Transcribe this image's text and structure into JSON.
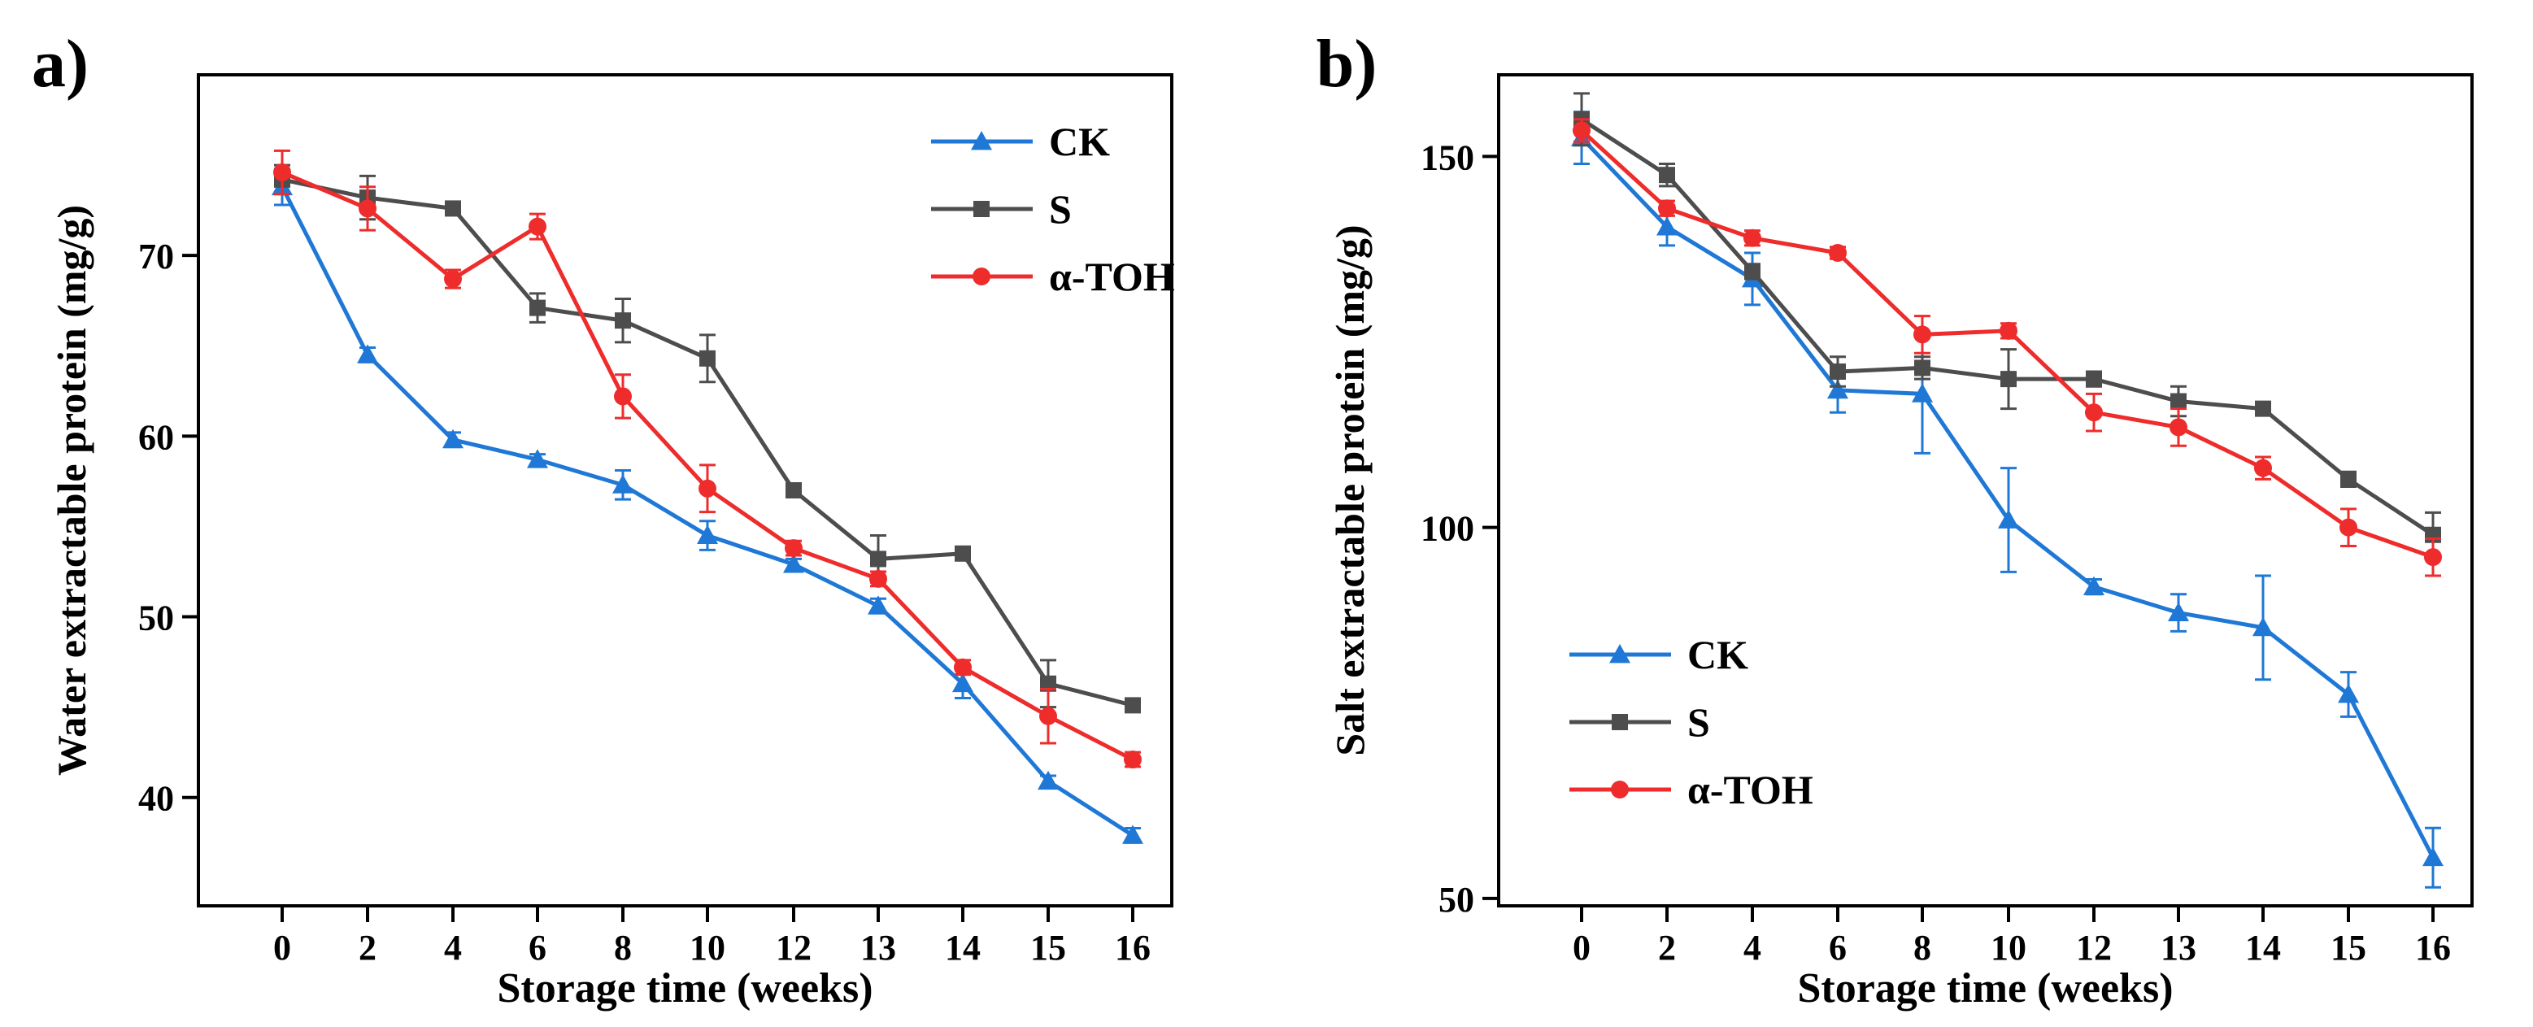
{
  "chart_data": [
    {
      "type": "line",
      "panel_label": "a)",
      "xlabel": "Storage time (weeks)",
      "ylabel": "Water extractable protein (mg/g)",
      "categories": [
        "0",
        "2",
        "4",
        "6",
        "8",
        "10",
        "12",
        "13",
        "14",
        "15",
        "16"
      ],
      "ylim": [
        34,
        80
      ],
      "yticks": [
        "40",
        "50",
        "60",
        "70"
      ],
      "legend_position": "top-right",
      "series": [
        {
          "name": "CK",
          "marker": "triangle",
          "color": "#1f78d6",
          "values": [
            73.8,
            64.5,
            59.8,
            58.7,
            57.3,
            54.5,
            52.9,
            50.6,
            46.3,
            40.9,
            37.9
          ],
          "errors": [
            1.0,
            0.4,
            0.4,
            0.3,
            0.8,
            0.8,
            0.3,
            0.4,
            0.8,
            0.3,
            0.4
          ]
        },
        {
          "name": "S",
          "marker": "square",
          "color": "#4d4d4d",
          "values": [
            74.2,
            73.2,
            72.6,
            67.1,
            66.4,
            64.3,
            57.0,
            53.2,
            53.5,
            46.3,
            45.1
          ],
          "errors": [
            0.8,
            1.2,
            0.3,
            0.8,
            1.2,
            1.3,
            0.3,
            1.3,
            0.3,
            1.3,
            0.3
          ]
        },
        {
          "name": "α-TOH",
          "marker": "circle",
          "color": "#ee2c2c",
          "values": [
            74.6,
            72.6,
            68.7,
            71.6,
            62.2,
            57.1,
            53.8,
            52.1,
            47.2,
            44.5,
            42.1
          ],
          "errors": [
            1.2,
            1.2,
            0.5,
            0.7,
            1.2,
            1.3,
            0.4,
            0.4,
            0.4,
            1.5,
            0.4
          ]
        }
      ]
    },
    {
      "type": "line",
      "panel_label": "b)",
      "xlabel": "Storage time (weeks)",
      "ylabel": "Salt extractable protein (mg/g)",
      "categories": [
        "0",
        "2",
        "4",
        "6",
        "8",
        "10",
        "12",
        "13",
        "14",
        "15",
        "16"
      ],
      "ylim": [
        49,
        161
      ],
      "yticks": [
        "50",
        "100",
        "150"
      ],
      "legend_position": "bottom-left",
      "series": [
        {
          "name": "CK",
          "marker": "triangle",
          "color": "#1f78d6",
          "values": [
            152.5,
            140.5,
            133.5,
            118.5,
            118.0,
            101.0,
            92.0,
            88.5,
            86.5,
            77.5,
            55.5
          ],
          "errors": [
            3.5,
            2.5,
            3.5,
            3.0,
            8.0,
            7.0,
            1.0,
            2.5,
            7.0,
            3.0,
            4.0
          ]
        },
        {
          "name": "S",
          "marker": "square",
          "color": "#4d4d4d",
          "values": [
            155.0,
            147.5,
            134.5,
            121.0,
            121.5,
            120.0,
            120.0,
            117.0,
            116.0,
            106.5,
            99.0
          ],
          "errors": [
            3.5,
            1.5,
            1.0,
            2.0,
            1.5,
            4.0,
            1.0,
            2.0,
            0.8,
            1.0,
            3.0
          ]
        },
        {
          "name": "α-TOH",
          "marker": "circle",
          "color": "#ee2c2c",
          "values": [
            153.5,
            143.0,
            139.0,
            137.0,
            126.0,
            126.5,
            115.5,
            113.5,
            108.0,
            100.0,
            96.0
          ],
          "errors": [
            1.5,
            1.0,
            1.0,
            0.8,
            2.5,
            1.0,
            2.5,
            2.5,
            1.5,
            2.5,
            2.5
          ]
        }
      ]
    }
  ]
}
